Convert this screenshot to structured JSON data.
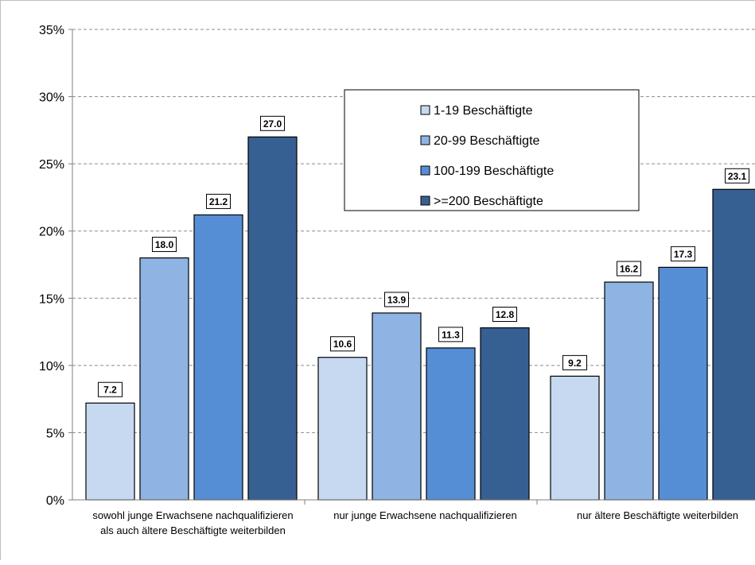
{
  "chart_data": {
    "type": "bar",
    "categories": [
      [
        "sowohl junge Erwachsene nachqualifizieren",
        "als auch ältere Beschäftigte weiterbilden"
      ],
      [
        "nur junge Erwachsene nachqualifizieren"
      ],
      [
        "nur ältere Beschäftigte weiterbilden"
      ]
    ],
    "series": [
      {
        "name": "1-19 Beschäftigte",
        "values": [
          7.2,
          10.6,
          9.2
        ],
        "color": "#c6d9f1"
      },
      {
        "name": "20-99 Beschäftigte",
        "values": [
          18.0,
          13.9,
          16.2
        ],
        "color": "#8eb4e3"
      },
      {
        "name": "100-199 Beschäftigte",
        "values": [
          21.2,
          11.3,
          17.3
        ],
        "color": "#558ed5"
      },
      {
        "name": ">=200 Beschäftigte",
        "values": [
          27.0,
          12.8,
          23.1
        ],
        "color": "#376092"
      }
    ],
    "value_labels": [
      [
        "7.2",
        "10.6",
        "9.2"
      ],
      [
        "18.0",
        "13.9",
        "16.2"
      ],
      [
        "21.2",
        "11.3",
        "17.3"
      ],
      [
        "27.0",
        "12.8",
        "23.1"
      ]
    ],
    "y_ticks": [
      0,
      5,
      10,
      15,
      20,
      25,
      30,
      35
    ],
    "y_tick_labels": [
      "0%",
      "5%",
      "10%",
      "15%",
      "20%",
      "25%",
      "30%",
      "35%"
    ],
    "ylim": [
      0,
      35
    ],
    "grid": true,
    "legend_position": "top-center"
  }
}
